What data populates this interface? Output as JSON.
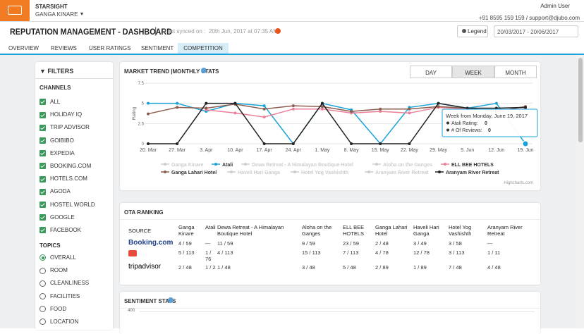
{
  "header": {
    "brand": "STARSIGHT",
    "property": "GANGA KINARE",
    "user": "Admin User",
    "contact": "+91 8595 159 159 / support@djubo.com",
    "title": "REPUTATION MANAGEMENT - DASHBOARD",
    "sync_label": "Last synced on :",
    "sync_time": "20th Jun, 2017 at 07:35 AM",
    "legend_button": "Legend",
    "date_range": "20/03/2017 - 20/06/2017"
  },
  "tabs": {
    "items": [
      "OVERVIEW",
      "REVIEWS",
      "USER RATINGS",
      "SENTIMENT",
      "COMPETITION"
    ],
    "active": 4
  },
  "filters": {
    "title": "FILTERS",
    "channels_title": "CHANNELS",
    "channels": [
      "ALL",
      "HOLIDAY IQ",
      "TRIP ADVISOR",
      "GOIBIBO",
      "EXPEDIA",
      "BOOKING.COM",
      "HOTELS.COM",
      "AGODA",
      "HOSTEL WORLD",
      "GOOGLE",
      "FACEBOOK"
    ],
    "topics_title": "TOPICS",
    "topics": [
      "OVERALL",
      "ROOM",
      "CLEANLINESS",
      "FACILITIES",
      "FOOD",
      "LOCATION"
    ],
    "selected_topic": 0
  },
  "market_trend": {
    "title": "MARKET TREND |MONTHLY STATS",
    "periods": [
      "DAY",
      "WEEK",
      "MONTH"
    ],
    "active_period": 1,
    "credit": "Highcharts.com"
  },
  "chart_data": {
    "type": "line",
    "y_label": "Rating",
    "ylim": [
      0,
      7.5
    ],
    "yticks": [
      0,
      2.5,
      5,
      7.5
    ],
    "grid": true,
    "categories": [
      "20. Mar",
      "27. Mar",
      "3. Apr",
      "10. Apr",
      "17. Apr",
      "24. Apr",
      "1. May",
      "8. May",
      "15. May",
      "22. May",
      "29. May",
      "5. Jun",
      "12. Jun",
      "19. Jun"
    ],
    "series": [
      {
        "name": "Ganga Kinare",
        "visible": false
      },
      {
        "name": "Atali",
        "color": "#1aa3d9",
        "visible": true,
        "values": [
          5,
          5,
          4,
          5,
          4.7,
          0,
          5,
          4.2,
          0,
          4.5,
          5,
          4.4,
          5,
          0
        ]
      },
      {
        "name": "Dewa Retreat - A Himalayan Boutique Hotel",
        "visible": false
      },
      {
        "name": "Aloha on the Ganges",
        "visible": false
      },
      {
        "name": "ELL BEE HOTELS",
        "color": "#ec7f98",
        "visible": true,
        "values": [
          null,
          null,
          4.2,
          3.8,
          3.3,
          4.3,
          4.3,
          3.8,
          4,
          3.8,
          4.5,
          4.3,
          4.2,
          4.3
        ]
      },
      {
        "name": "Ganga Lahari Hotel",
        "color": "#8c5e50",
        "visible": true,
        "values": [
          3.7,
          4.5,
          4.4,
          4.9,
          4.3,
          4.7,
          4.6,
          4,
          4.3,
          4.3,
          4.6,
          4.4,
          4,
          4.6
        ]
      },
      {
        "name": "Haveli Hari Ganga",
        "visible": false
      },
      {
        "name": "Hotel Yog Vashishth",
        "visible": false
      },
      {
        "name": "Aranyam River Retreat",
        "visible": false
      },
      {
        "name": "Aranyam River Retreat",
        "color": "#222222",
        "visible": true,
        "values": [
          0,
          0,
          5,
          5,
          0,
          0,
          5,
          0,
          0,
          0,
          5,
          4.4,
          4.4,
          4.5
        ]
      }
    ],
    "tooltip": {
      "header": "Week from Monday, June 19, 2017",
      "rows": [
        {
          "label": "Atali Rating:",
          "value": 0
        },
        {
          "label": "# Of Reviews:",
          "value": 0
        }
      ]
    }
  },
  "ota": {
    "title": "OTA RANKING",
    "columns": [
      "SOURCE",
      "Ganga Kinare",
      "Atali",
      "Dewa Retreat - A Himalayan Boutique Hotel",
      "Aloha on the Ganges",
      "ELL BEE HOTELS",
      "Ganga Lahari Hotel",
      "Haveli Hari Ganga",
      "Hotel Yog Vashishth",
      "Aranyam River Retreat"
    ],
    "rows": [
      [
        "Booking.com",
        "4 / 59",
        "---",
        "11 / 59",
        "9 / 59",
        "23 / 59",
        "2 / 48",
        "3 / 49",
        "3 / 58",
        "---"
      ],
      [
        null,
        "5 / 113",
        "1 / 76",
        "4 / 113",
        "15 / 113",
        "7 / 113",
        "4 / 78",
        "12 / 78",
        "3 / 113",
        "1 / 11"
      ],
      [
        "tripadvisor",
        "2 / 48",
        "1 / 2",
        "1 / 48",
        "3 / 48",
        "5 / 48",
        "2 / 89",
        "1 / 89",
        "7 / 48",
        "4 / 48"
      ]
    ]
  },
  "sentiment": {
    "title": "SENTIMENT STATS",
    "ytick": 400
  }
}
